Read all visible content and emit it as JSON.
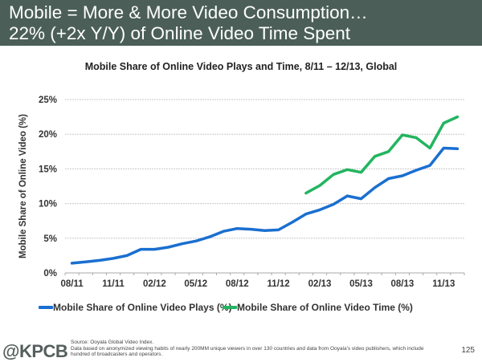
{
  "header": {
    "line1": "Mobile = More & More Video Consumption…",
    "line2": "22% (+2x Y/Y) of Online Video Time Spent",
    "bg_color": "#4b5f58"
  },
  "chart_data": {
    "type": "line",
    "title": "Mobile Share of Online Video Plays and Time, 8/11 – 12/13, Global",
    "xlabel": "",
    "ylabel": "Mobile Share of Online Video (%)",
    "ylim": [
      0,
      25
    ],
    "yticks": [
      0,
      5,
      10,
      15,
      20,
      25
    ],
    "ytick_labels": [
      "0%",
      "5%",
      "10%",
      "15%",
      "20%",
      "25%"
    ],
    "x": [
      "08/11",
      "09/11",
      "10/11",
      "11/11",
      "12/11",
      "01/12",
      "02/12",
      "03/12",
      "04/12",
      "05/12",
      "06/12",
      "07/12",
      "08/12",
      "09/12",
      "10/12",
      "11/12",
      "12/12",
      "01/13",
      "02/13",
      "03/13",
      "04/13",
      "05/13",
      "06/13",
      "07/13",
      "08/13",
      "09/13",
      "10/13",
      "11/13",
      "12/13"
    ],
    "xtick_labels": [
      "08/11",
      "11/11",
      "02/12",
      "05/12",
      "08/12",
      "11/12",
      "02/13",
      "05/13",
      "08/13",
      "11/13"
    ],
    "grid": true,
    "legend_position": "bottom",
    "series": [
      {
        "name": "Mobile Share of Online Video Plays (%)",
        "color": "#1a6fd0",
        "values": [
          1.4,
          1.6,
          1.8,
          2.1,
          2.5,
          3.4,
          3.4,
          3.7,
          4.2,
          4.6,
          5.2,
          6.0,
          6.4,
          6.3,
          6.1,
          6.2,
          7.3,
          8.5,
          9.1,
          9.9,
          11.1,
          10.7,
          12.3,
          13.6,
          14.0,
          14.8,
          15.5,
          18.0,
          17.9
        ]
      },
      {
        "name": "Mobile Share of Online Video Time (%)",
        "color": "#22b560",
        "values": [
          null,
          null,
          null,
          null,
          null,
          null,
          null,
          null,
          null,
          null,
          null,
          null,
          null,
          null,
          null,
          null,
          null,
          11.5,
          12.6,
          14.2,
          14.9,
          14.5,
          16.8,
          17.5,
          19.9,
          19.5,
          18.0,
          21.6,
          22.5
        ]
      }
    ]
  },
  "footer": {
    "logo": "@KPCB",
    "source": "Source: Ooyala Global Video Index.",
    "note": "Data based on anonymized viewing habits of nearly 200MM unique viewers in over 130 countries and data from Ooyala's video publishers, which include hundred of broadcasters and operators.",
    "page_number": "125"
  }
}
